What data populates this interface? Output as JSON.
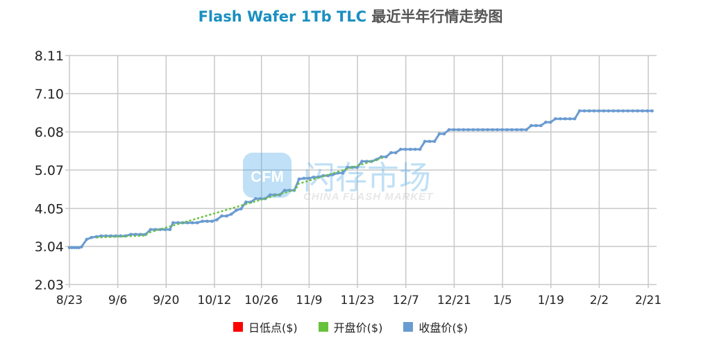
{
  "title": {
    "english": "Flash Wafer 1Tb TLC",
    "chinese": "最近半年行情走势图"
  },
  "watermark": {
    "logo_text": "CFM",
    "cn_text": "闪存市场",
    "en_text": "CHINA FLASH MARKET"
  },
  "legend": [
    {
      "label": "日低点($)",
      "color": "#ff0000"
    },
    {
      "label": "开盘价($)",
      "color": "#66c23a"
    },
    {
      "label": "收盘价($)",
      "color": "#6a9bd1"
    }
  ],
  "chart_data": {
    "type": "line",
    "title": "Flash Wafer 1Tb TLC 最近半年行情走势图",
    "xlabel": "",
    "ylabel": "",
    "ylim": [
      2.03,
      8.11
    ],
    "yticks": [
      "2.03",
      "3.04",
      "4.05",
      "5.07",
      "6.08",
      "7.10",
      "8.11"
    ],
    "xticks": [
      "8/23",
      "9/6",
      "9/20",
      "10/12",
      "10/26",
      "11/9",
      "11/23",
      "12/7",
      "12/21",
      "1/5",
      "1/19",
      "2/2",
      "2/21"
    ],
    "grid": true,
    "legend_position": "bottom",
    "series": [
      {
        "name": "收盘价($)",
        "color": "#6a9bd1",
        "points": [
          [
            0.0,
            3.01
          ],
          [
            0.07,
            3.01
          ],
          [
            0.14,
            3.01
          ],
          [
            0.21,
            3.01
          ],
          [
            0.28,
            3.01
          ],
          [
            0.35,
            3.03
          ],
          [
            0.5,
            3.23
          ],
          [
            0.64,
            3.28
          ],
          [
            0.78,
            3.3
          ],
          [
            0.92,
            3.32
          ],
          [
            1.06,
            3.32
          ],
          [
            1.2,
            3.32
          ],
          [
            1.34,
            3.32
          ],
          [
            1.48,
            3.32
          ],
          [
            1.62,
            3.32
          ],
          [
            1.78,
            3.36
          ],
          [
            1.92,
            3.36
          ],
          [
            2.06,
            3.36
          ],
          [
            2.2,
            3.36
          ],
          [
            2.35,
            3.49
          ],
          [
            2.49,
            3.49
          ],
          [
            2.63,
            3.49
          ],
          [
            2.77,
            3.49
          ],
          [
            2.91,
            3.49
          ],
          [
            3.0,
            3.67
          ],
          [
            3.14,
            3.67
          ],
          [
            3.28,
            3.67
          ],
          [
            3.42,
            3.67
          ],
          [
            3.56,
            3.67
          ],
          [
            3.7,
            3.67
          ],
          [
            3.85,
            3.71
          ],
          [
            3.99,
            3.71
          ],
          [
            4.13,
            3.71
          ],
          [
            4.27,
            3.75
          ],
          [
            4.41,
            3.85
          ],
          [
            4.55,
            3.85
          ],
          [
            4.69,
            3.9
          ],
          [
            4.83,
            4.0
          ],
          [
            4.97,
            4.04
          ],
          [
            5.11,
            4.22
          ],
          [
            5.25,
            4.22
          ],
          [
            5.39,
            4.31
          ],
          [
            5.53,
            4.31
          ],
          [
            5.67,
            4.31
          ],
          [
            5.81,
            4.41
          ],
          [
            5.95,
            4.41
          ],
          [
            6.09,
            4.41
          ],
          [
            6.23,
            4.53
          ],
          [
            6.37,
            4.53
          ],
          [
            6.51,
            4.53
          ],
          [
            6.65,
            4.83
          ],
          [
            6.79,
            4.85
          ],
          [
            6.93,
            4.85
          ],
          [
            7.07,
            4.88
          ],
          [
            7.21,
            4.88
          ],
          [
            7.35,
            4.92
          ],
          [
            7.49,
            4.92
          ],
          [
            7.63,
            4.95
          ],
          [
            7.77,
            4.99
          ],
          [
            7.91,
            4.99
          ],
          [
            8.05,
            5.14
          ],
          [
            8.19,
            5.14
          ],
          [
            8.33,
            5.14
          ],
          [
            8.47,
            5.3
          ],
          [
            8.61,
            5.3
          ],
          [
            8.75,
            5.3
          ],
          [
            8.89,
            5.35
          ],
          [
            9.03,
            5.42
          ],
          [
            9.17,
            5.42
          ],
          [
            9.31,
            5.53
          ],
          [
            9.45,
            5.53
          ],
          [
            9.59,
            5.62
          ],
          [
            9.73,
            5.62
          ],
          [
            9.87,
            5.62
          ],
          [
            10.01,
            5.62
          ],
          [
            10.15,
            5.62
          ],
          [
            10.29,
            5.83
          ],
          [
            10.43,
            5.83
          ],
          [
            10.57,
            5.83
          ],
          [
            10.71,
            6.03
          ],
          [
            10.85,
            6.03
          ],
          [
            10.99,
            6.14
          ],
          [
            11.13,
            6.14
          ],
          [
            11.27,
            6.14
          ],
          [
            11.41,
            6.14
          ],
          [
            11.55,
            6.14
          ],
          [
            11.69,
            6.14
          ],
          [
            11.83,
            6.14
          ],
          [
            11.97,
            6.14
          ],
          [
            12.11,
            6.14
          ],
          [
            12.25,
            6.14
          ],
          [
            12.39,
            6.14
          ],
          [
            12.53,
            6.14
          ],
          [
            12.67,
            6.14
          ],
          [
            12.81,
            6.14
          ],
          [
            12.95,
            6.14
          ],
          [
            13.09,
            6.14
          ],
          [
            13.23,
            6.14
          ],
          [
            13.37,
            6.25
          ],
          [
            13.51,
            6.25
          ],
          [
            13.65,
            6.25
          ],
          [
            13.79,
            6.34
          ],
          [
            13.93,
            6.34
          ],
          [
            14.07,
            6.43
          ],
          [
            14.21,
            6.43
          ],
          [
            14.35,
            6.43
          ],
          [
            14.49,
            6.43
          ],
          [
            14.63,
            6.43
          ],
          [
            14.77,
            6.64
          ],
          [
            14.91,
            6.64
          ],
          [
            15.05,
            6.64
          ],
          [
            15.19,
            6.64
          ],
          [
            15.33,
            6.64
          ],
          [
            15.47,
            6.64
          ],
          [
            15.61,
            6.64
          ],
          [
            15.75,
            6.64
          ],
          [
            15.89,
            6.64
          ],
          [
            16.03,
            6.64
          ],
          [
            16.17,
            6.64
          ],
          [
            16.31,
            6.64
          ],
          [
            16.45,
            6.64
          ],
          [
            16.59,
            6.64
          ],
          [
            16.73,
            6.64
          ],
          [
            16.87,
            6.64
          ]
        ]
      },
      {
        "name": "开盘价($)",
        "color": "#66c23a",
        "points": [
          [
            0.78,
            3.28
          ],
          [
            2.2,
            3.33
          ],
          [
            2.27,
            3.4
          ],
          [
            6.55,
            4.55
          ],
          [
            6.62,
            4.7
          ],
          [
            9.03,
            5.38
          ],
          [
            9.12,
            5.44
          ]
        ]
      },
      {
        "name": "日低点($)",
        "color": "#ff0000",
        "points": []
      }
    ],
    "x_domain": [
      0,
      17
    ],
    "xtick_positions": [
      0,
      1.4,
      2.8,
      4.2,
      5.56,
      6.94,
      8.34,
      9.74,
      11.14,
      12.54,
      13.94,
      15.34,
      16.76
    ]
  }
}
